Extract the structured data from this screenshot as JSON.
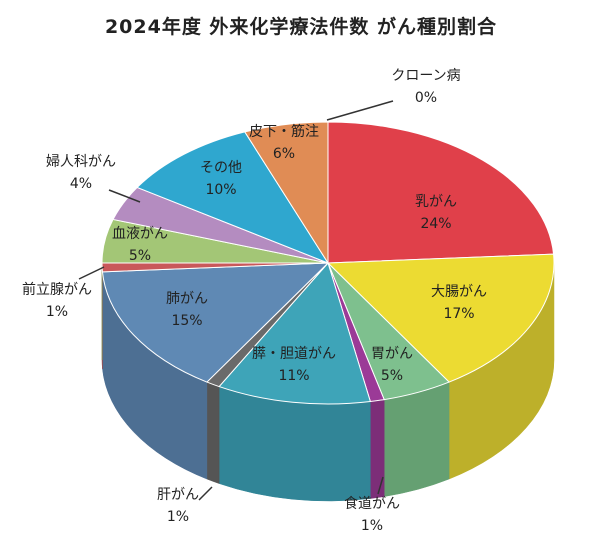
{
  "chart_data": {
    "type": "pie",
    "title": "2024年度 外来化学療法件数 がん種別割合",
    "slices": [
      {
        "name": "乳がん",
        "value": 24,
        "label": "24%",
        "color": "#e0404a",
        "side": "#b3333b"
      },
      {
        "name": "大腸がん",
        "value": 17,
        "label": "17%",
        "color": "#ecdb32",
        "side": "#bdb02a"
      },
      {
        "name": "胃がん",
        "value": 5,
        "label": "5%",
        "color": "#7ec08e",
        "side": "#65a072"
      },
      {
        "name": "食道がん",
        "value": 1,
        "label": "1%",
        "color": "#9b3a97",
        "side": "#7c2e78"
      },
      {
        "name": "膵・胆道がん",
        "value": 11,
        "label": "11%",
        "color": "#3ea4b8",
        "side": "#318597"
      },
      {
        "name": "肝がん",
        "value": 1,
        "label": "1%",
        "color": "#6a6a6a",
        "side": "#555555"
      },
      {
        "name": "肺がん",
        "value": 15,
        "label": "15%",
        "color": "#5f89b4",
        "side": "#4d6f93"
      },
      {
        "name": "前立腺がん",
        "value": 1,
        "label": "1%",
        "color": "#c9585a",
        "side": "#a44749"
      },
      {
        "name": "血液がん",
        "value": 5,
        "label": "5%",
        "color": "#a3c676",
        "side": "#84a35f"
      },
      {
        "name": "婦人科がん",
        "value": 4,
        "label": "4%",
        "color": "#b48cc0",
        "side": "#93729c"
      },
      {
        "name": "その他",
        "value": 10,
        "label": "10%",
        "color": "#2fa7cf",
        "side": "#2687a8"
      },
      {
        "name": "皮下・筋注",
        "value": 6,
        "label": "6%",
        "color": "#e08c55",
        "side": "#b87245"
      },
      {
        "name": "クローン病",
        "value": 0,
        "label": "0%",
        "color": "#cccccc",
        "side": "#aaaaaa"
      }
    ]
  }
}
